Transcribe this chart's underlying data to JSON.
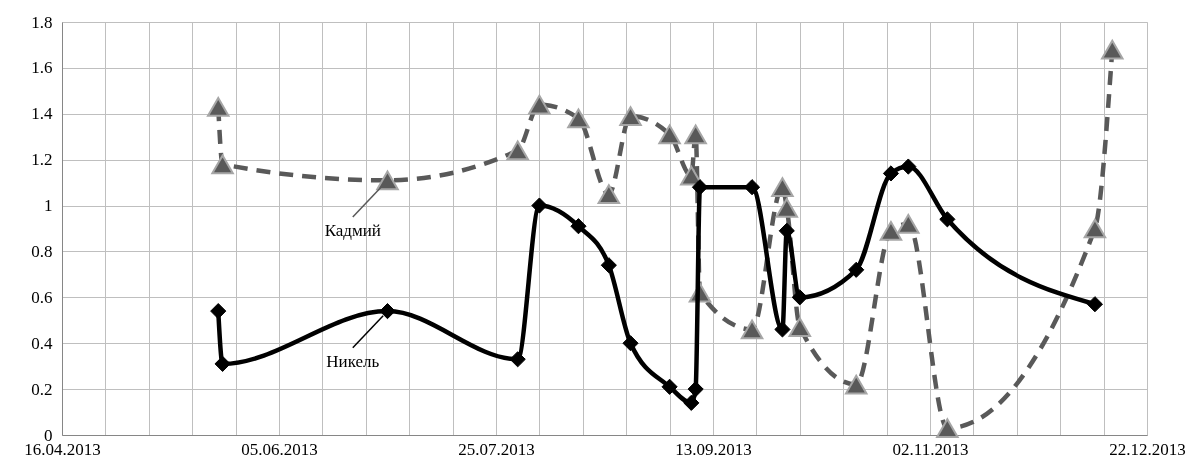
{
  "chart_data": {
    "type": "line",
    "x": [
      "2013-05-22",
      "2013-05-23",
      "2013-06-30",
      "2013-07-30",
      "2013-08-04",
      "2013-08-13",
      "2013-08-20",
      "2013-08-25",
      "2013-09-03",
      "2013-09-08",
      "2013-09-09",
      "2013-09-10",
      "2013-09-22",
      "2013-09-29",
      "2013-09-30",
      "2013-10-03",
      "2013-10-16",
      "2013-10-24",
      "2013-10-28",
      "2013-11-06",
      "2013-12-10",
      "2013-12-14"
    ],
    "series": [
      {
        "name": "Кадмий",
        "color": "#595959",
        "marker": "triangle",
        "line_style": "dashed",
        "values": [
          1.43,
          1.18,
          1.11,
          1.24,
          1.44,
          1.38,
          1.05,
          1.39,
          1.31,
          1.13,
          1.31,
          0.62,
          0.46,
          1.08,
          0.99,
          0.47,
          0.22,
          0.89,
          0.92,
          0.03,
          0.9,
          1.68
        ]
      },
      {
        "name": "Никель",
        "color": "#000000",
        "marker": "diamond",
        "line_style": "solid",
        "values": [
          0.54,
          0.31,
          0.54,
          0.33,
          1.0,
          0.91,
          0.74,
          0.4,
          0.21,
          0.14,
          0.2,
          1.08,
          1.08,
          0.46,
          0.89,
          0.6,
          0.72,
          1.14,
          1.17,
          0.94,
          0.57,
          null
        ]
      }
    ],
    "xlim": [
      "2013-04-16",
      "2013-12-22"
    ],
    "xticks": [
      {
        "value": "2013-04-16",
        "label": "16.04.2013"
      },
      {
        "value": "2013-04-26",
        "label": null
      },
      {
        "value": "2013-05-06",
        "label": null
      },
      {
        "value": "2013-05-16",
        "label": null
      },
      {
        "value": "2013-05-26",
        "label": null
      },
      {
        "value": "2013-06-05",
        "label": "05.06.2013"
      },
      {
        "value": "2013-06-15",
        "label": null
      },
      {
        "value": "2013-06-25",
        "label": null
      },
      {
        "value": "2013-07-05",
        "label": null
      },
      {
        "value": "2013-07-15",
        "label": null
      },
      {
        "value": "2013-07-25",
        "label": "25.07.2013"
      },
      {
        "value": "2013-08-04",
        "label": null
      },
      {
        "value": "2013-08-14",
        "label": null
      },
      {
        "value": "2013-08-24",
        "label": null
      },
      {
        "value": "2013-09-03",
        "label": null
      },
      {
        "value": "2013-09-13",
        "label": "13.09.2013"
      },
      {
        "value": "2013-09-23",
        "label": null
      },
      {
        "value": "2013-10-03",
        "label": null
      },
      {
        "value": "2013-10-13",
        "label": null
      },
      {
        "value": "2013-10-23",
        "label": null
      },
      {
        "value": "2013-11-02",
        "label": "02.11.2013"
      },
      {
        "value": "2013-11-12",
        "label": null
      },
      {
        "value": "2013-11-22",
        "label": null
      },
      {
        "value": "2013-12-02",
        "label": null
      },
      {
        "value": "2013-12-12",
        "label": null
      },
      {
        "value": "2013-12-22",
        "label": "22.12.2013"
      }
    ],
    "ylim": [
      0,
      1.8
    ],
    "yticks": [
      0,
      0.2,
      0.4,
      0.6,
      0.8,
      1,
      1.2,
      1.4,
      1.6,
      1.8
    ],
    "grid": true,
    "legend": "left"
  }
}
